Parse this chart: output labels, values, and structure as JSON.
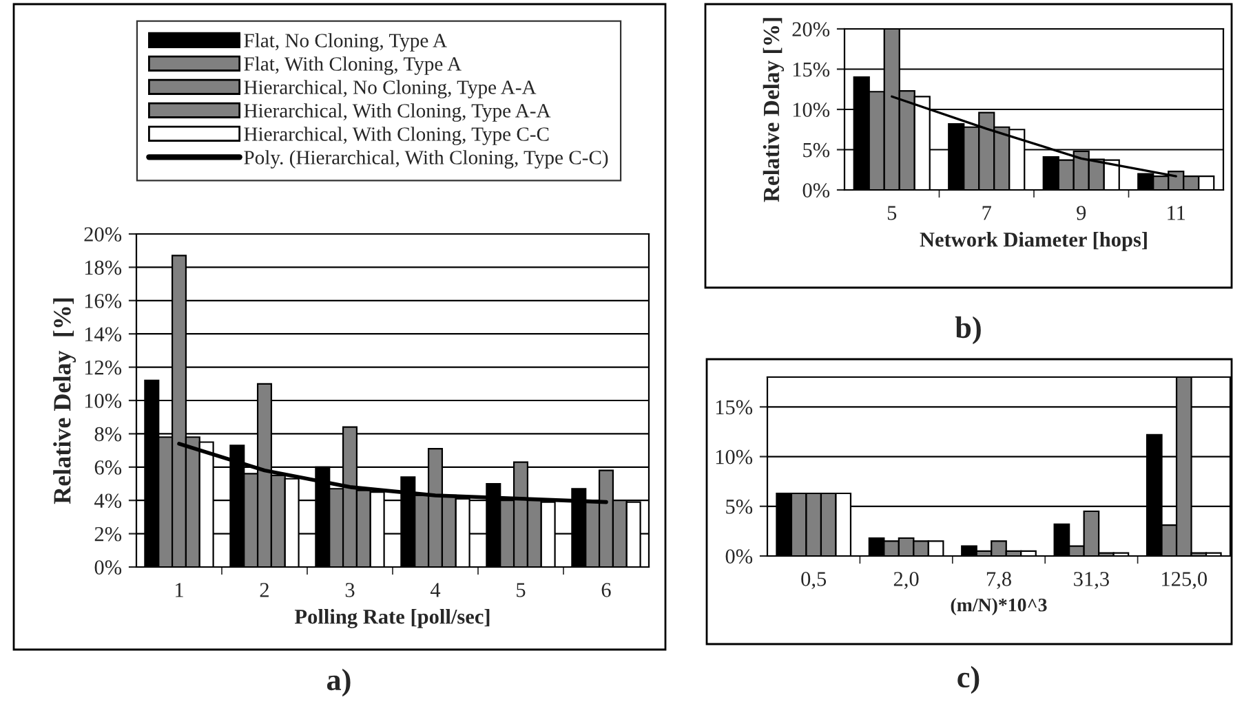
{
  "chart_data": [
    {
      "type": "bar",
      "xlabel": "Polling Rate [poll/sec]",
      "ylabel": "Relative Delay  [%]",
      "categories": [
        "1",
        "2",
        "3",
        "4",
        "5",
        "6"
      ],
      "series": [
        {
          "name": "Flat, No Cloning, Type A",
          "color": "#000000",
          "values": [
            11.2,
            7.3,
            6.0,
            5.4,
            5.0,
            4.7
          ]
        },
        {
          "name": "Flat, With Cloning, Type A",
          "color": "#808080",
          "values": [
            7.8,
            5.6,
            4.7,
            4.3,
            4.0,
            3.9
          ]
        },
        {
          "name": "Hierarchical, No Cloning, Type A-A",
          "color": "#808080",
          "values": [
            18.7,
            11.0,
            8.4,
            7.1,
            6.3,
            5.8
          ]
        },
        {
          "name": "Hierarchical, With Cloning, Type A-A",
          "color": "#808080",
          "values": [
            7.8,
            5.5,
            4.6,
            4.3,
            4.0,
            4.0
          ]
        },
        {
          "name": "Hierarchical, With Cloning, Type C-C",
          "color": "#ffffff",
          "values": [
            7.5,
            5.3,
            4.5,
            4.1,
            3.9,
            3.9
          ]
        },
        {
          "name": "Poly. (Hierarchical, With Cloning, Type C-C)",
          "type": "line",
          "color": "#000000",
          "values": [
            7.4,
            5.8,
            4.8,
            4.3,
            4.1,
            3.9
          ]
        }
      ],
      "ylim": [
        0,
        20
      ],
      "yticks": [
        {
          "value": 0,
          "label": "0%"
        },
        {
          "value": 2,
          "label": "2%"
        },
        {
          "value": 4,
          "label": "4%"
        },
        {
          "value": 6,
          "label": "6%"
        },
        {
          "value": 8,
          "label": "8%"
        },
        {
          "value": 10,
          "label": "10%"
        },
        {
          "value": 12,
          "label": "12%"
        },
        {
          "value": 14,
          "label": "14%"
        },
        {
          "value": 16,
          "label": "16%"
        },
        {
          "value": 18,
          "label": "18%"
        },
        {
          "value": 20,
          "label": "20%"
        }
      ],
      "grid": "y",
      "legend": "top",
      "annotations": [
        "a)"
      ]
    },
    {
      "type": "bar",
      "xlabel": "Network Diameter [hops]",
      "ylabel": "Relative Delay [%]",
      "categories": [
        "5",
        "7",
        "9",
        "11"
      ],
      "series": [
        {
          "color": "#000000",
          "values": [
            14.0,
            8.2,
            4.1,
            2.0
          ]
        },
        {
          "color": "#808080",
          "values": [
            12.2,
            7.8,
            3.7,
            1.7
          ]
        },
        {
          "color": "#808080",
          "values": [
            20,
            9.6,
            4.8,
            2.3
          ]
        },
        {
          "color": "#808080",
          "values": [
            12.3,
            7.8,
            3.8,
            1.7
          ]
        },
        {
          "color": "#ffffff",
          "values": [
            11.6,
            7.5,
            3.7,
            1.7
          ]
        },
        {
          "type": "line",
          "color": "#000000",
          "values": [
            11.6,
            7.6,
            3.9,
            1.7
          ]
        }
      ],
      "ylim": [
        0,
        20
      ],
      "yticks": [
        {
          "value": 0,
          "label": "0%"
        },
        {
          "value": 5,
          "label": "5%"
        },
        {
          "value": 10,
          "label": "10%"
        },
        {
          "value": 15,
          "label": "15%"
        },
        {
          "value": 20,
          "label": "20%"
        }
      ],
      "grid": "y",
      "annotations": [
        "b)"
      ]
    },
    {
      "type": "bar",
      "xlabel": "(m/N)*10^3",
      "categories": [
        "0,5",
        "2,0",
        "7,8",
        "31,3",
        "125,0"
      ],
      "series": [
        {
          "color": "#000000",
          "values": [
            6.3,
            1.8,
            1.0,
            3.2,
            12.2
          ]
        },
        {
          "color": "#808080",
          "values": [
            6.3,
            1.5,
            0.5,
            1.0,
            3.1
          ]
        },
        {
          "color": "#808080",
          "values": [
            6.3,
            1.8,
            1.5,
            4.5,
            18
          ]
        },
        {
          "color": "#808080",
          "values": [
            6.3,
            1.5,
            0.5,
            0.3,
            0.3
          ]
        },
        {
          "color": "#ffffff",
          "values": [
            6.3,
            1.5,
            0.5,
            0.3,
            0.3
          ]
        }
      ],
      "ylim": [
        0,
        18
      ],
      "yticks": [
        {
          "value": 0,
          "label": "0%"
        },
        {
          "value": 5,
          "label": "5%"
        },
        {
          "value": 10,
          "label": "10%"
        },
        {
          "value": 15,
          "label": "15%"
        }
      ],
      "grid": "y",
      "annotations": [
        "c)"
      ]
    }
  ]
}
